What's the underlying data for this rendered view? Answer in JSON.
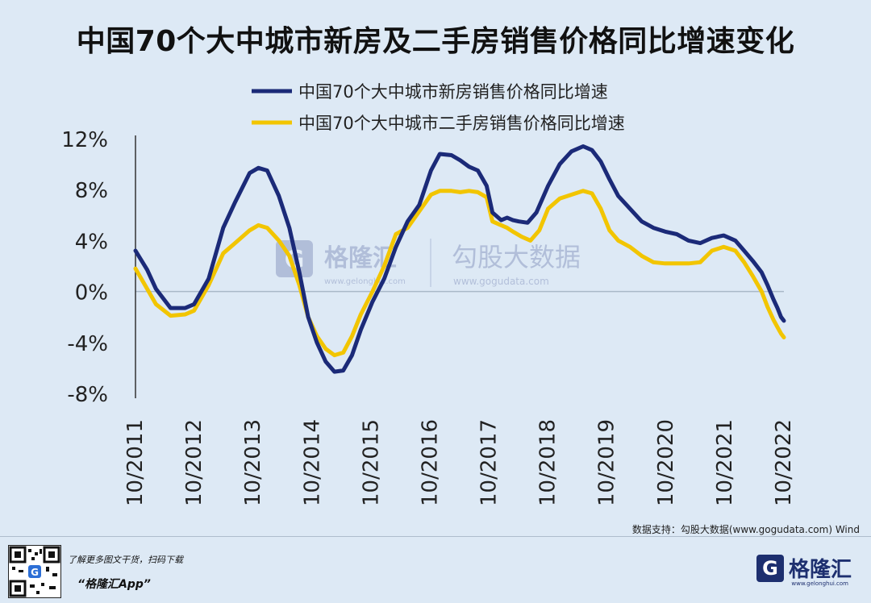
{
  "title": "中国70个大中城市新房及二手房销售价格同比增速变化",
  "source": "数据支持：勾股大数据(www.gogudata.com) Wind",
  "watermark": {
    "brand": "格隆汇",
    "brand_url": "www.gelonghui.com",
    "data_brand": "勾股大数据",
    "data_url": "www.gogudata.com"
  },
  "footer": {
    "line1": "了解更多图文干货，扫码下载",
    "line2": "“格隆汇App”",
    "logo_mark": "G",
    "logo_text": "格隆汇",
    "logo_url": "www.gelonghui.com"
  },
  "colors": {
    "new_home": "#1b2a78",
    "second_hand": "#f2c500",
    "zero_line": "#a9b9c8",
    "axis": "#333333",
    "background": "#dde9f5"
  },
  "chart_data": {
    "type": "line",
    "title": "中国70个大中城市新房及二手房销售价格同比增速变化",
    "xlabel": "",
    "ylabel": "",
    "ylim": [
      -8,
      12
    ],
    "yticks": [
      "12%",
      "8%",
      "4%",
      "0%",
      "-4%",
      "-8%"
    ],
    "ytick_values": [
      12,
      8,
      4,
      0,
      -4,
      -8
    ],
    "xticks": [
      "10/2011",
      "10/2012",
      "10/2013",
      "10/2014",
      "10/2015",
      "10/2016",
      "10/2017",
      "10/2018",
      "10/2019",
      "10/2020",
      "10/2021",
      "10/2022"
    ],
    "xlim": [
      2011.75,
      2022.83
    ],
    "legend_position": "top-center",
    "grid": false,
    "series": [
      {
        "name": "中国70个大中城市新房销售价格同比增速",
        "color": "#1b2a78",
        "points": [
          [
            2011.75,
            3.2
          ],
          [
            2011.95,
            1.7
          ],
          [
            2012.1,
            0.2
          ],
          [
            2012.35,
            -1.3
          ],
          [
            2012.6,
            -1.3
          ],
          [
            2012.75,
            -1.0
          ],
          [
            2013.0,
            1.0
          ],
          [
            2013.25,
            5.0
          ],
          [
            2013.45,
            7.0
          ],
          [
            2013.7,
            9.3
          ],
          [
            2013.85,
            9.7
          ],
          [
            2014.0,
            9.5
          ],
          [
            2014.2,
            7.5
          ],
          [
            2014.38,
            5.0
          ],
          [
            2014.55,
            1.5
          ],
          [
            2014.7,
            -2.0
          ],
          [
            2014.85,
            -4.0
          ],
          [
            2015.0,
            -5.5
          ],
          [
            2015.15,
            -6.3
          ],
          [
            2015.3,
            -6.2
          ],
          [
            2015.45,
            -5.0
          ],
          [
            2015.6,
            -3.0
          ],
          [
            2015.8,
            -0.8
          ],
          [
            2016.0,
            1.0
          ],
          [
            2016.2,
            3.5
          ],
          [
            2016.4,
            5.5
          ],
          [
            2016.6,
            6.8
          ],
          [
            2016.8,
            9.5
          ],
          [
            2016.95,
            10.8
          ],
          [
            2017.15,
            10.7
          ],
          [
            2017.3,
            10.3
          ],
          [
            2017.45,
            9.8
          ],
          [
            2017.6,
            9.5
          ],
          [
            2017.75,
            8.3
          ],
          [
            2017.85,
            6.2
          ],
          [
            2018.0,
            5.6
          ],
          [
            2018.1,
            5.8
          ],
          [
            2018.2,
            5.6
          ],
          [
            2018.3,
            5.5
          ],
          [
            2018.45,
            5.4
          ],
          [
            2018.6,
            6.2
          ],
          [
            2018.8,
            8.3
          ],
          [
            2019.0,
            10.0
          ],
          [
            2019.2,
            11.0
          ],
          [
            2019.4,
            11.4
          ],
          [
            2019.55,
            11.1
          ],
          [
            2019.7,
            10.2
          ],
          [
            2019.85,
            8.8
          ],
          [
            2020.0,
            7.5
          ],
          [
            2020.2,
            6.5
          ],
          [
            2020.4,
            5.5
          ],
          [
            2020.6,
            5.0
          ],
          [
            2020.8,
            4.7
          ],
          [
            2021.0,
            4.5
          ],
          [
            2021.2,
            4.0
          ],
          [
            2021.4,
            3.8
          ],
          [
            2021.6,
            4.2
          ],
          [
            2021.8,
            4.4
          ],
          [
            2022.0,
            4.0
          ],
          [
            2022.15,
            3.2
          ],
          [
            2022.3,
            2.4
          ],
          [
            2022.45,
            1.5
          ],
          [
            2022.55,
            0.5
          ],
          [
            2022.65,
            -0.6
          ],
          [
            2022.72,
            -1.3
          ],
          [
            2022.78,
            -2.0
          ],
          [
            2022.83,
            -2.3
          ]
        ]
      },
      {
        "name": "中国70个大中城市二手房销售价格同比增速",
        "color": "#f2c500",
        "points": [
          [
            2011.75,
            1.8
          ],
          [
            2011.95,
            0.2
          ],
          [
            2012.1,
            -1.0
          ],
          [
            2012.35,
            -1.9
          ],
          [
            2012.6,
            -1.8
          ],
          [
            2012.75,
            -1.5
          ],
          [
            2013.0,
            0.5
          ],
          [
            2013.25,
            3.0
          ],
          [
            2013.45,
            3.8
          ],
          [
            2013.7,
            4.8
          ],
          [
            2013.85,
            5.2
          ],
          [
            2014.0,
            5.0
          ],
          [
            2014.2,
            4.0
          ],
          [
            2014.38,
            2.8
          ],
          [
            2014.55,
            0.5
          ],
          [
            2014.7,
            -2.0
          ],
          [
            2014.85,
            -3.5
          ],
          [
            2015.0,
            -4.5
          ],
          [
            2015.15,
            -5.0
          ],
          [
            2015.3,
            -4.8
          ],
          [
            2015.45,
            -3.5
          ],
          [
            2015.6,
            -1.8
          ],
          [
            2015.8,
            0.0
          ],
          [
            2016.0,
            2.0
          ],
          [
            2016.2,
            4.5
          ],
          [
            2016.4,
            5.0
          ],
          [
            2016.6,
            6.3
          ],
          [
            2016.8,
            7.6
          ],
          [
            2016.95,
            7.9
          ],
          [
            2017.15,
            7.9
          ],
          [
            2017.3,
            7.8
          ],
          [
            2017.45,
            7.9
          ],
          [
            2017.6,
            7.8
          ],
          [
            2017.75,
            7.4
          ],
          [
            2017.85,
            5.5
          ],
          [
            2018.0,
            5.2
          ],
          [
            2018.1,
            5.0
          ],
          [
            2018.2,
            4.7
          ],
          [
            2018.35,
            4.3
          ],
          [
            2018.5,
            4.0
          ],
          [
            2018.65,
            4.8
          ],
          [
            2018.8,
            6.5
          ],
          [
            2019.0,
            7.3
          ],
          [
            2019.2,
            7.6
          ],
          [
            2019.4,
            7.9
          ],
          [
            2019.55,
            7.7
          ],
          [
            2019.7,
            6.5
          ],
          [
            2019.85,
            4.8
          ],
          [
            2020.0,
            4.0
          ],
          [
            2020.2,
            3.5
          ],
          [
            2020.4,
            2.8
          ],
          [
            2020.6,
            2.3
          ],
          [
            2020.8,
            2.2
          ],
          [
            2021.0,
            2.2
          ],
          [
            2021.2,
            2.2
          ],
          [
            2021.4,
            2.3
          ],
          [
            2021.6,
            3.2
          ],
          [
            2021.8,
            3.5
          ],
          [
            2022.0,
            3.2
          ],
          [
            2022.15,
            2.3
          ],
          [
            2022.3,
            1.2
          ],
          [
            2022.45,
            0.0
          ],
          [
            2022.55,
            -1.2
          ],
          [
            2022.65,
            -2.2
          ],
          [
            2022.72,
            -2.8
          ],
          [
            2022.78,
            -3.3
          ],
          [
            2022.83,
            -3.6
          ]
        ]
      }
    ]
  }
}
